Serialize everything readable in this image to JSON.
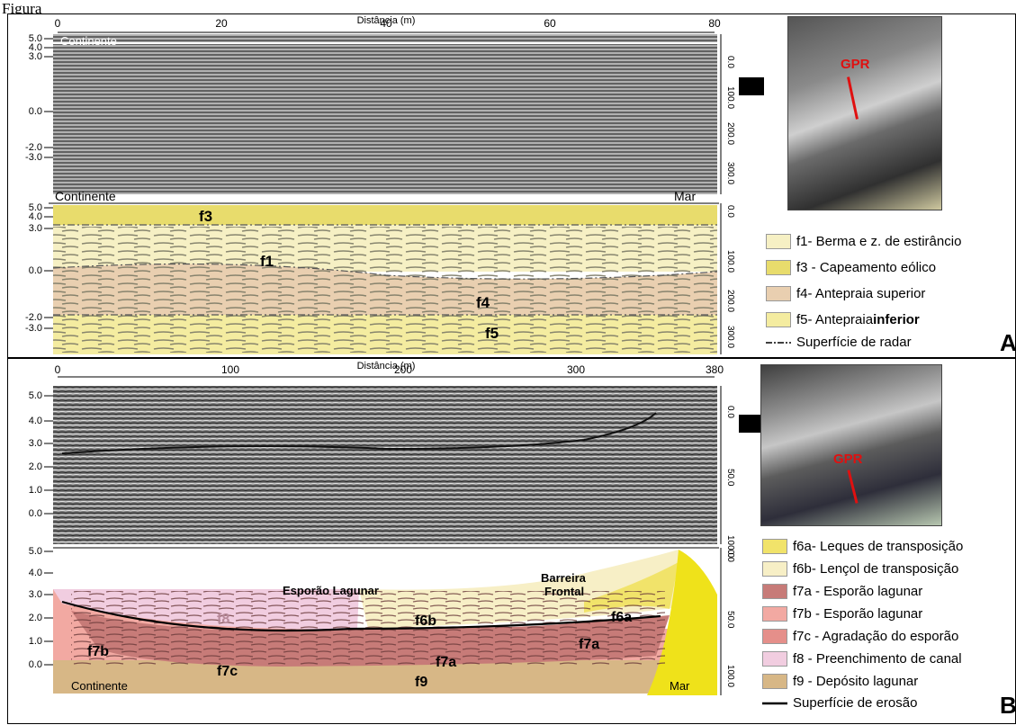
{
  "figure_label": "Figura",
  "panel_a": {
    "letter": "A",
    "axis_title": "Distância (m)",
    "x_ticks": [
      "0",
      "20",
      "40",
      "60",
      "80"
    ],
    "left_ticks_top": [
      "5.0",
      "4.0",
      "3.0",
      "0.0",
      "-2.0",
      "-3.0"
    ],
    "left_ticks_bottom": [
      "5.0",
      "4.0",
      "3.0",
      "0.0",
      "-2.0",
      "-3.0"
    ],
    "right_ticks_top": [
      "0.0",
      "100.0",
      "200.0",
      "300.0"
    ],
    "right_ticks_bottom": [
      "0.0",
      "100.0",
      "200.0",
      "300.0"
    ],
    "label_continente_top": "Continente",
    "label_continente": "Continente",
    "label_mar": "Mar",
    "facies": [
      "f3",
      "f1",
      "f4",
      "f5"
    ],
    "photo_label": "GPR",
    "legend": [
      {
        "label": "f1- Berma e z. de estirâncio",
        "color": "#f6f0c4"
      },
      {
        "label": "f3 - Capeamento eólico",
        "color": "#e8dc6c"
      },
      {
        "label": "f4- Antepraia superior",
        "color": "#e9cfb0"
      },
      {
        "label": "f5- Antepraia ",
        "bold": "inferior",
        "color": "#f4eca0"
      },
      {
        "label": "Superfície de radar",
        "line": "dashdot"
      }
    ]
  },
  "panel_b": {
    "letter": "B",
    "axis_title": "Distância (m)",
    "x_ticks": [
      "0",
      "100",
      "200",
      "300",
      "380"
    ],
    "left_ticks_top": [
      "5.0",
      "4.0",
      "3.0",
      "2.0",
      "1.0",
      "0.0"
    ],
    "left_ticks_bottom": [
      "5.0",
      "4.0",
      "3.0",
      "2.0",
      "1.0",
      "0.0"
    ],
    "right_ticks_top": [
      "0.0",
      "50.0",
      "100.0"
    ],
    "right_ticks_bottom": [
      "0.0",
      "50.0",
      "100.0"
    ],
    "label_esporao": "Esporão Lagunar",
    "label_barreira_1": "Barreira",
    "label_barreira_2": "Frontal",
    "label_continente": "Continente",
    "label_mar": "Mar",
    "facies": [
      "f6a",
      "f6b",
      "f8",
      "f7a",
      "f7a",
      "f7b",
      "f7c",
      "f9"
    ],
    "photo_label": "GPR",
    "legend": [
      {
        "label": "f6a- Leques de transposição",
        "color": "#f1e36a"
      },
      {
        "label": "f6b- Lençol de transposição",
        "color": "#f7efc6"
      },
      {
        "label": "f7a - Esporão lagunar",
        "color": "#c77b78"
      },
      {
        "label": "f7b - Esporão lagunar",
        "color": "#f2a9a2"
      },
      {
        "label": "f7c - Agradação do esporão",
        "color": "#e58f8a"
      },
      {
        "label": "f8 - Preenchimento de canal",
        "color": "#f1cde0"
      },
      {
        "label": "f9 - Depósito lagunar",
        "color": "#d7b786"
      },
      {
        "label": "Superfície de erosão",
        "line": "solid"
      }
    ]
  }
}
